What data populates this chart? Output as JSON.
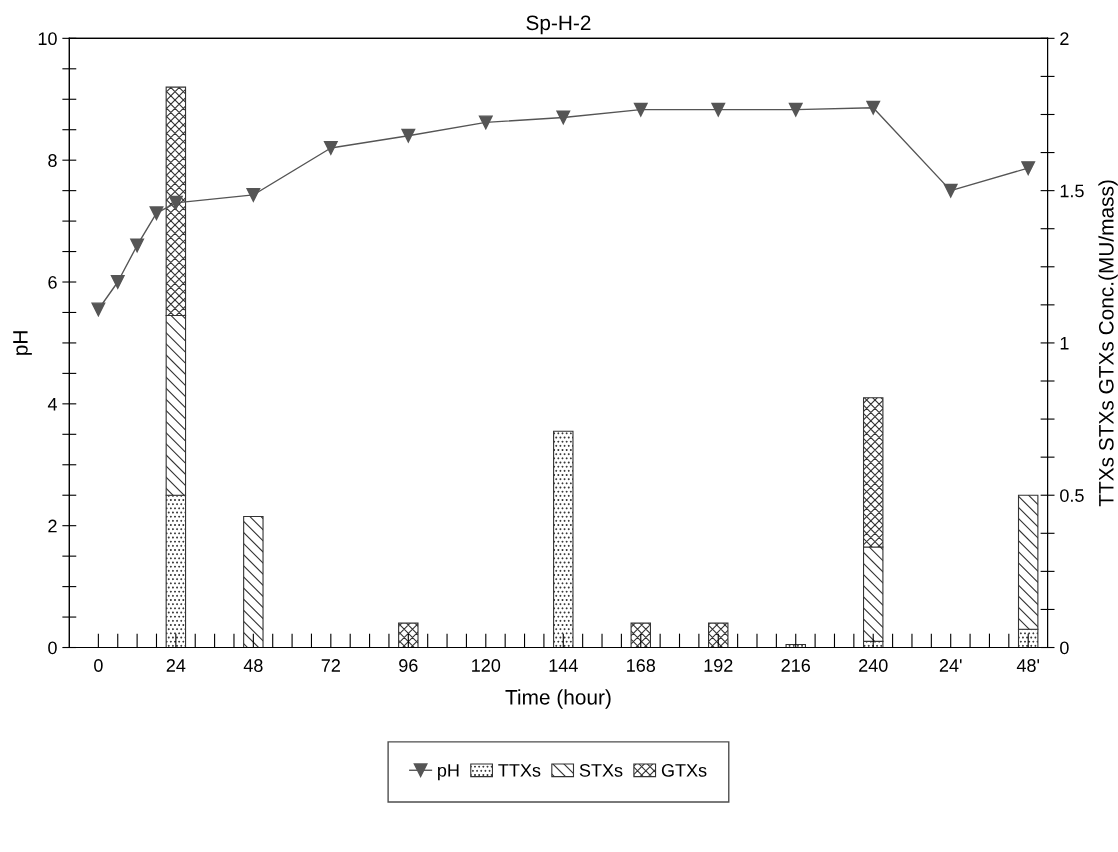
{
  "chart_data": {
    "type": "bar",
    "title": "Sp-H-2",
    "xlabel": "Time (hour)",
    "ylabel": "pH",
    "y2label": "TTXs STXs GTXs Conc.(MU/mass)",
    "stacked": true,
    "legend": "bottom",
    "grid": false,
    "categories": [
      "0",
      null,
      null,
      null,
      "24",
      null,
      null,
      null,
      "48",
      null,
      null,
      null,
      "72",
      null,
      null,
      null,
      "96",
      null,
      null,
      null,
      "120",
      null,
      null,
      null,
      "144",
      null,
      null,
      null,
      "168",
      null,
      null,
      null,
      "192",
      null,
      null,
      null,
      "216",
      null,
      null,
      null,
      "240",
      null,
      null,
      null,
      "24'",
      null,
      null,
      null,
      "48'"
    ],
    "ylim": [
      0,
      10
    ],
    "yticks": [
      0,
      {
        "value": 0.5,
        "label": null
      },
      {
        "value": 1,
        "label": null
      },
      {
        "value": 1.5,
        "label": null
      },
      2,
      {
        "value": 2.5,
        "label": null
      },
      {
        "value": 3,
        "label": null
      },
      {
        "value": 3.5,
        "label": null
      },
      4,
      {
        "value": 4.5,
        "label": null
      },
      {
        "value": 5,
        "label": null
      },
      {
        "value": 5.5,
        "label": null
      },
      6,
      {
        "value": 6.5,
        "label": null
      },
      {
        "value": 7,
        "label": null
      },
      {
        "value": 7.5,
        "label": null
      },
      8,
      {
        "value": 8.5,
        "label": null
      },
      {
        "value": 9,
        "label": null
      },
      {
        "value": 9.5,
        "label": null
      },
      10
    ],
    "y2lim": [
      0,
      2
    ],
    "y2ticks": [
      0,
      {
        "value": 0.125,
        "label": null
      },
      {
        "value": 0.25,
        "label": null
      },
      {
        "value": 0.375,
        "label": null
      },
      0.5,
      {
        "value": 0.625,
        "label": null
      },
      {
        "value": 0.75,
        "label": null
      },
      {
        "value": 0.875,
        "label": null
      },
      1,
      {
        "value": 1.125,
        "label": null
      },
      {
        "value": 1.25,
        "label": null
      },
      {
        "value": 1.375,
        "label": null
      },
      1.5,
      {
        "value": 1.625,
        "label": null
      },
      {
        "value": 1.75,
        "label": null
      },
      {
        "value": 1.875,
        "label": null
      },
      2
    ],
    "series": [
      {
        "name": "pH",
        "type": "line",
        "color": "#555555",
        "marker": "triangle",
        "line_style": "solid",
        "values": [
          5.55,
          6.0,
          6.6,
          7.13,
          7.3,
          null,
          null,
          null,
          7.43,
          null,
          null,
          null,
          8.2,
          null,
          null,
          null,
          8.4,
          null,
          null,
          null,
          8.62,
          null,
          null,
          null,
          8.7,
          null,
          null,
          null,
          8.83,
          null,
          null,
          null,
          8.83,
          null,
          null,
          null,
          8.83,
          null,
          null,
          null,
          8.86,
          null,
          null,
          null,
          7.5,
          null,
          null,
          null,
          7.87
        ]
      },
      {
        "name": "TTXs",
        "axis": "y2",
        "color": "#333333",
        "values": [
          null,
          null,
          null,
          null,
          0.5,
          null,
          null,
          null,
          null,
          null,
          null,
          null,
          null,
          null,
          null,
          null,
          null,
          null,
          null,
          null,
          null,
          null,
          null,
          null,
          0.71,
          null,
          null,
          null,
          null,
          null,
          null,
          null,
          null,
          null,
          null,
          null,
          0.01,
          null,
          null,
          null,
          0.02,
          null,
          null,
          null,
          null,
          null,
          null,
          null,
          0.06
        ]
      },
      {
        "name": "STXs",
        "axis": "y2",
        "color": "#333333",
        "values": [
          null,
          null,
          null,
          null,
          0.59,
          null,
          null,
          null,
          0.43,
          null,
          null,
          null,
          null,
          null,
          null,
          null,
          null,
          null,
          null,
          null,
          null,
          null,
          null,
          null,
          null,
          null,
          null,
          null,
          null,
          null,
          null,
          null,
          null,
          null,
          null,
          null,
          null,
          null,
          null,
          null,
          0.31,
          null,
          null,
          null,
          null,
          null,
          null,
          null,
          0.44
        ]
      },
      {
        "name": "GTXs",
        "axis": "y2",
        "color": "#333333",
        "values": [
          null,
          null,
          null,
          null,
          0.75,
          null,
          null,
          null,
          null,
          null,
          null,
          null,
          null,
          null,
          null,
          null,
          0.08,
          null,
          null,
          null,
          null,
          null,
          null,
          null,
          null,
          null,
          null,
          null,
          0.08,
          null,
          null,
          null,
          0.08,
          null,
          null,
          null,
          null,
          null,
          null,
          null,
          0.49,
          null,
          null,
          null,
          null,
          null,
          null,
          null,
          null
        ]
      }
    ]
  }
}
